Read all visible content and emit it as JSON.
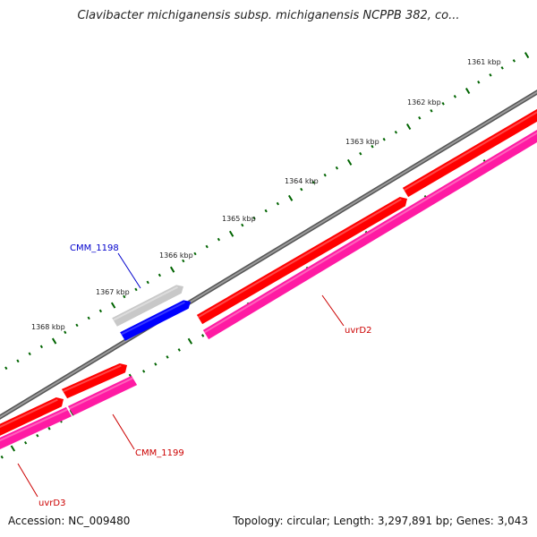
{
  "title": "Clavibacter michiganensis subsp. michiganensis NCPPB 382, co...",
  "accession": "Accession: NC_009480",
  "summary": "Topology: circular; Length: 3,297,891 bp; Genes: 3,043",
  "ticks": [
    "1361 kbp",
    "1362 kbp",
    "1363 kbp",
    "1364 kbp",
    "1365 kbp",
    "1366 kbp",
    "1367 kbp",
    "1368 kbp"
  ],
  "genes": [
    {
      "name": "CMM_1198",
      "color": "#0000cc"
    },
    {
      "name": "uvrD2",
      "color": "#cc0000"
    },
    {
      "name": "CMM_1199",
      "color": "#cc0000"
    },
    {
      "name": "uvrD3",
      "color": "#cc0000"
    }
  ],
  "colors": {
    "backbone": "#808080",
    "forward_cds": "#ff0000",
    "reverse_cds": "#0000ff",
    "pseudo_gene": "#c8c8c8",
    "gene_track": "#ff1aa3",
    "ruler_ticks": "#006400"
  }
}
